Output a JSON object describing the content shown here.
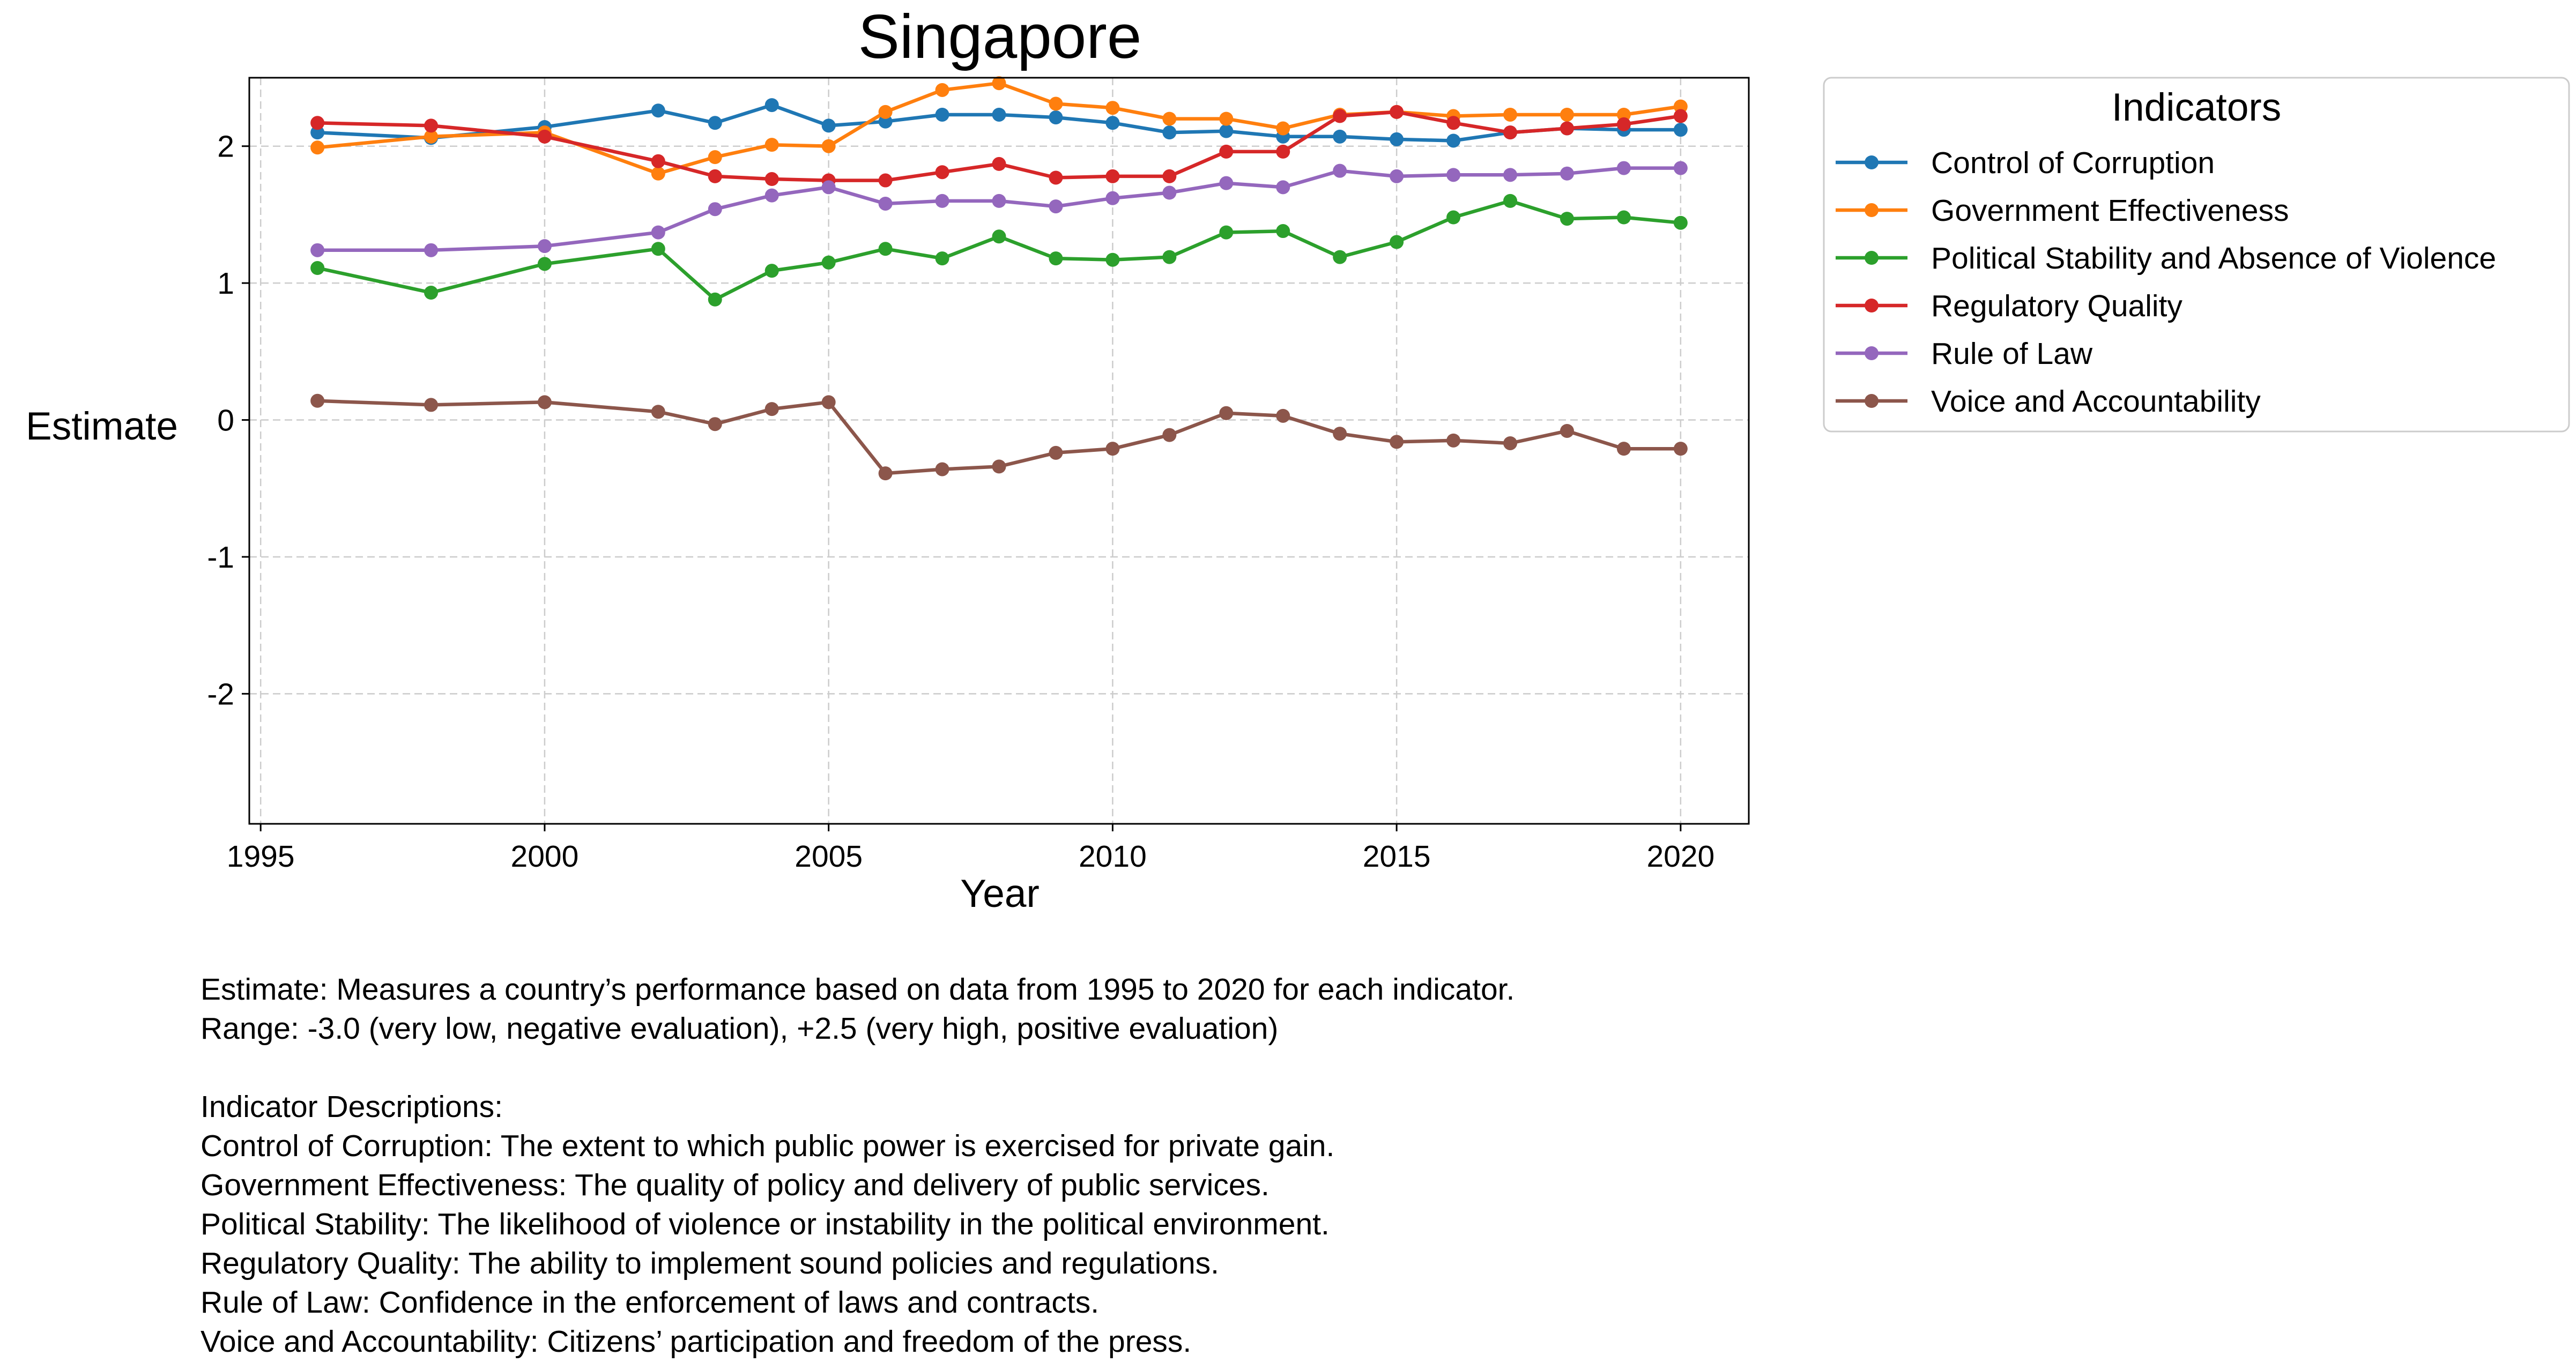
{
  "chart_data": {
    "type": "line",
    "title": "Singapore",
    "xlabel": "Year",
    "ylabel": "Estimate",
    "xlim": [
      1994.8,
      2021.2
    ],
    "ylim": [
      -2.95,
      2.5
    ],
    "xticks": [
      1995,
      2000,
      2005,
      2010,
      2015,
      2020
    ],
    "xtick_labels": [
      "1995",
      "2000",
      "2005",
      "2010",
      "2015",
      "2020"
    ],
    "yticks": [
      -2,
      -1,
      0,
      1,
      2
    ],
    "ytick_labels": [
      "-2",
      "-1",
      "0",
      "1",
      "2"
    ],
    "grid": true,
    "legend": {
      "title": "Indicators",
      "placement": "outside-top-right"
    },
    "x": [
      1996,
      1998,
      2000,
      2002,
      2003,
      2004,
      2005,
      2006,
      2007,
      2008,
      2009,
      2010,
      2011,
      2012,
      2013,
      2014,
      2015,
      2016,
      2017,
      2018,
      2019,
      2020
    ],
    "series": [
      {
        "name": "Control of Corruption",
        "color": "#1f77b4",
        "values": [
          2.1,
          2.06,
          2.14,
          2.26,
          2.17,
          2.3,
          2.15,
          2.18,
          2.23,
          2.23,
          2.21,
          2.17,
          2.1,
          2.11,
          2.07,
          2.07,
          2.05,
          2.04,
          2.1,
          2.13,
          2.12,
          2.12
        ]
      },
      {
        "name": "Government Effectiveness",
        "color": "#ff7f0e",
        "values": [
          1.99,
          2.07,
          2.1,
          1.8,
          1.92,
          2.01,
          2.0,
          2.25,
          2.41,
          2.46,
          2.31,
          2.28,
          2.2,
          2.2,
          2.13,
          2.23,
          2.25,
          2.22,
          2.23,
          2.23,
          2.23,
          2.29
        ]
      },
      {
        "name": "Political Stability and Absence of Violence",
        "color": "#2ca02c",
        "values": [
          1.11,
          0.93,
          1.14,
          1.25,
          0.88,
          1.09,
          1.15,
          1.25,
          1.18,
          1.34,
          1.18,
          1.17,
          1.19,
          1.37,
          1.38,
          1.19,
          1.3,
          1.48,
          1.6,
          1.47,
          1.48,
          1.44
        ]
      },
      {
        "name": "Regulatory Quality",
        "color": "#d62728",
        "values": [
          2.17,
          2.15,
          2.07,
          1.89,
          1.78,
          1.76,
          1.75,
          1.75,
          1.81,
          1.87,
          1.77,
          1.78,
          1.78,
          1.96,
          1.96,
          2.22,
          2.25,
          2.17,
          2.1,
          2.13,
          2.16,
          2.22
        ]
      },
      {
        "name": "Rule of Law",
        "color": "#9467bd",
        "values": [
          1.24,
          1.24,
          1.27,
          1.37,
          1.54,
          1.64,
          1.7,
          1.58,
          1.6,
          1.6,
          1.56,
          1.62,
          1.66,
          1.73,
          1.7,
          1.82,
          1.78,
          1.79,
          1.79,
          1.8,
          1.84,
          1.84
        ]
      },
      {
        "name": "Voice and Accountability",
        "color": "#8c564b",
        "values": [
          0.14,
          0.11,
          0.13,
          0.06,
          -0.03,
          0.08,
          0.13,
          -0.39,
          -0.36,
          -0.34,
          -0.24,
          -0.21,
          -0.11,
          0.05,
          0.03,
          -0.1,
          -0.16,
          -0.15,
          -0.17,
          -0.08,
          -0.21,
          -0.21
        ]
      }
    ]
  },
  "notes": {
    "estimate": "Estimate: Measures a country’s performance based on data from 1995 to 2020 for each indicator.",
    "range": "Range: -3.0 (very low, negative evaluation), +2.5 (very high, positive evaluation)",
    "descriptions_heading": "Indicator Descriptions:",
    "descriptions": [
      "Control of Corruption: The extent to which public power is exercised for private gain.",
      "Government Effectiveness: The quality of policy and delivery of public services.",
      "Political Stability: The likelihood of violence or instability in the political environment.",
      "Regulatory Quality: The ability to implement sound policies and regulations.",
      "Rule of Law: Confidence in the enforcement of laws and contracts.",
      "Voice and Accountability: Citizens’ participation and freedom of the press."
    ]
  }
}
